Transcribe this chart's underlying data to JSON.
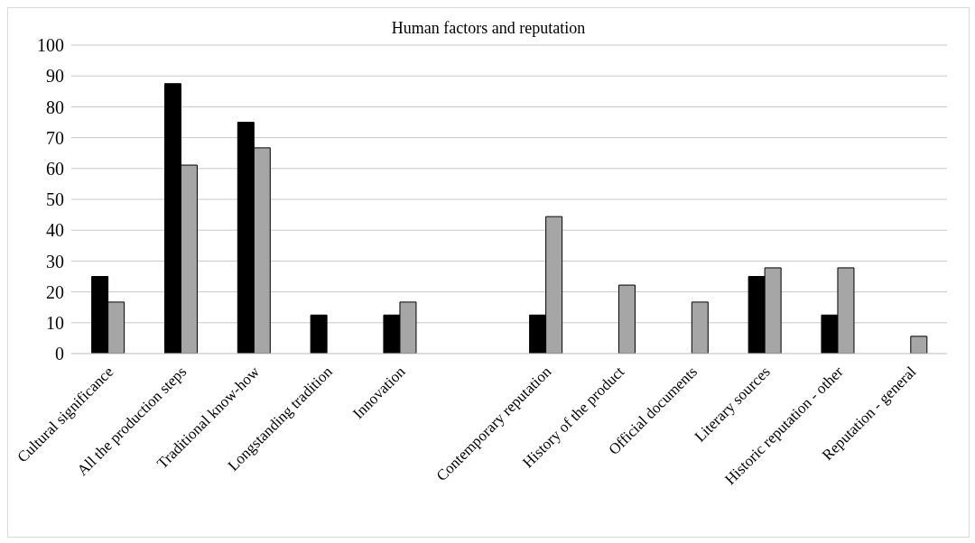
{
  "chart_data": {
    "type": "bar",
    "title": "Human factors and reputation",
    "categories": [
      "Cultural significance",
      "All the production steps",
      "Traditional know-how",
      "Longstanding tradition",
      "Innovation",
      null,
      "Contemporary reputation",
      "History of the product",
      "Official documents",
      "Literary sources",
      "Historic reputation - other",
      "Reputation - general"
    ],
    "series": [
      {
        "color": "#000000",
        "values": [
          25,
          87.5,
          75,
          12.5,
          12.5,
          null,
          12.5,
          0,
          0,
          25,
          12.5,
          0
        ]
      },
      {
        "color": "#a6a6a6",
        "values": [
          16.7,
          61.1,
          66.7,
          0,
          16.7,
          null,
          44.4,
          22.2,
          16.7,
          27.8,
          27.8,
          5.6
        ]
      }
    ],
    "ylim": [
      0,
      100
    ],
    "yticks": [
      0,
      10,
      20,
      30,
      40,
      50,
      60,
      70,
      80,
      90,
      100
    ],
    "grid": "y",
    "legend": false
  }
}
